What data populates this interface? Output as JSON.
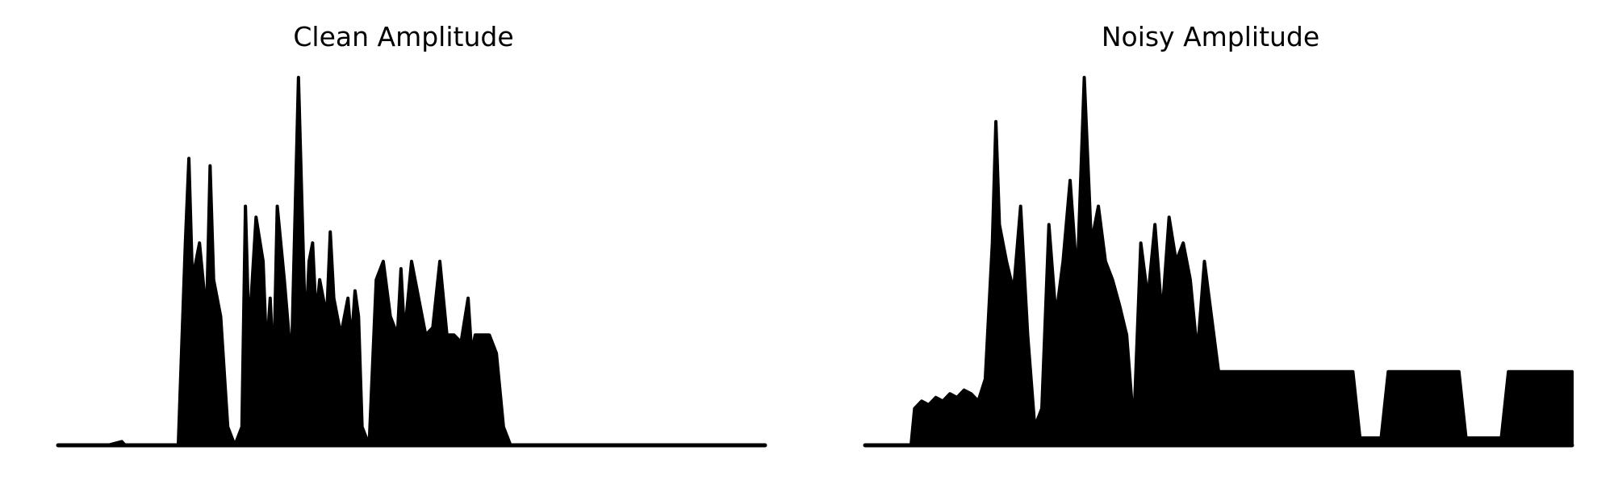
{
  "chart_data": [
    {
      "type": "area",
      "title": "Clean Amplitude",
      "xlabel": "",
      "ylabel": "",
      "axes_visible": false,
      "grid": false,
      "color": "#000000",
      "x_domain": [
        0,
        100
      ],
      "ylim": [
        0,
        1.0
      ],
      "x": [
        0,
        7,
        9,
        9.5,
        10,
        17,
        18,
        18.5,
        19,
        20,
        21,
        21.5,
        22,
        23,
        24,
        25,
        26,
        26.5,
        27,
        28,
        29,
        29.5,
        30,
        30.5,
        31,
        32,
        33,
        34,
        35,
        35.5,
        36,
        36.5,
        37,
        38,
        38.5,
        39,
        40,
        41,
        41.5,
        42,
        42.5,
        43,
        44,
        45,
        46,
        47,
        48,
        48.5,
        49,
        50,
        51,
        52,
        53,
        54,
        55,
        56,
        57,
        58,
        58.5,
        59,
        60,
        61,
        62,
        63,
        64,
        65,
        66,
        67,
        68,
        69,
        70,
        100
      ],
      "values": [
        0.0,
        0.0,
        0.01,
        0.0,
        0.0,
        0.0,
        0.55,
        0.78,
        0.45,
        0.55,
        0.35,
        0.76,
        0.45,
        0.35,
        0.05,
        0.0,
        0.05,
        0.65,
        0.3,
        0.62,
        0.5,
        0.25,
        0.4,
        0.2,
        0.65,
        0.45,
        0.22,
        1.0,
        0.3,
        0.5,
        0.55,
        0.35,
        0.45,
        0.35,
        0.58,
        0.4,
        0.3,
        0.4,
        0.28,
        0.42,
        0.35,
        0.05,
        0.0,
        0.45,
        0.5,
        0.35,
        0.3,
        0.48,
        0.3,
        0.5,
        0.4,
        0.3,
        0.32,
        0.5,
        0.3,
        0.3,
        0.28,
        0.4,
        0.25,
        0.3,
        0.3,
        0.3,
        0.25,
        0.05,
        0.0,
        0.0,
        0.0,
        0.0,
        0.0,
        0.0,
        0.0,
        0.0
      ]
    },
    {
      "type": "area",
      "title": "Noisy Amplitude",
      "xlabel": "",
      "ylabel": "",
      "axes_visible": false,
      "grid": false,
      "color": "#000000",
      "x_domain": [
        0,
        100
      ],
      "ylim": [
        0,
        1.0
      ],
      "x": [
        0,
        6.5,
        7,
        8,
        9,
        10,
        11,
        12,
        13,
        14,
        15,
        16,
        17,
        18,
        18.5,
        19,
        20,
        21,
        22,
        23,
        24,
        25,
        26,
        27,
        28,
        29,
        30,
        31,
        32,
        33,
        34,
        35,
        36,
        37,
        38,
        39,
        40,
        41,
        42,
        43,
        44,
        45,
        46,
        47,
        48,
        49,
        50,
        51,
        52,
        53,
        54,
        55,
        56,
        57,
        58,
        59,
        60,
        61,
        62,
        63,
        64,
        65,
        66,
        67,
        68,
        69,
        70,
        71,
        72,
        73,
        74,
        75,
        76,
        77,
        78,
        79,
        80,
        81,
        82,
        83,
        84,
        85,
        86,
        87,
        88,
        89,
        90,
        91,
        92,
        93,
        94,
        95,
        96,
        97,
        98,
        99,
        100
      ],
      "values": [
        0.0,
        0.0,
        0.1,
        0.12,
        0.11,
        0.13,
        0.12,
        0.14,
        0.13,
        0.15,
        0.14,
        0.12,
        0.18,
        0.55,
        0.88,
        0.6,
        0.5,
        0.42,
        0.65,
        0.3,
        0.05,
        0.1,
        0.6,
        0.35,
        0.5,
        0.72,
        0.45,
        1.0,
        0.55,
        0.65,
        0.5,
        0.45,
        0.38,
        0.3,
        0.05,
        0.55,
        0.4,
        0.6,
        0.35,
        0.62,
        0.5,
        0.55,
        0.45,
        0.25,
        0.5,
        0.35,
        0.2,
        0.2,
        0.2,
        0.2,
        0.2,
        0.2,
        0.2,
        0.2,
        0.2,
        0.2,
        0.2,
        0.2,
        0.2,
        0.2,
        0.2,
        0.2,
        0.2,
        0.2,
        0.2,
        0.2,
        0.02,
        0.02,
        0.02,
        0.02,
        0.2,
        0.2,
        0.2,
        0.2,
        0.2,
        0.2,
        0.2,
        0.2,
        0.2,
        0.2,
        0.2,
        0.02,
        0.02,
        0.02,
        0.02,
        0.02,
        0.02,
        0.2,
        0.2,
        0.2,
        0.2,
        0.2,
        0.2,
        0.2,
        0.2,
        0.2,
        0.2
      ]
    }
  ]
}
